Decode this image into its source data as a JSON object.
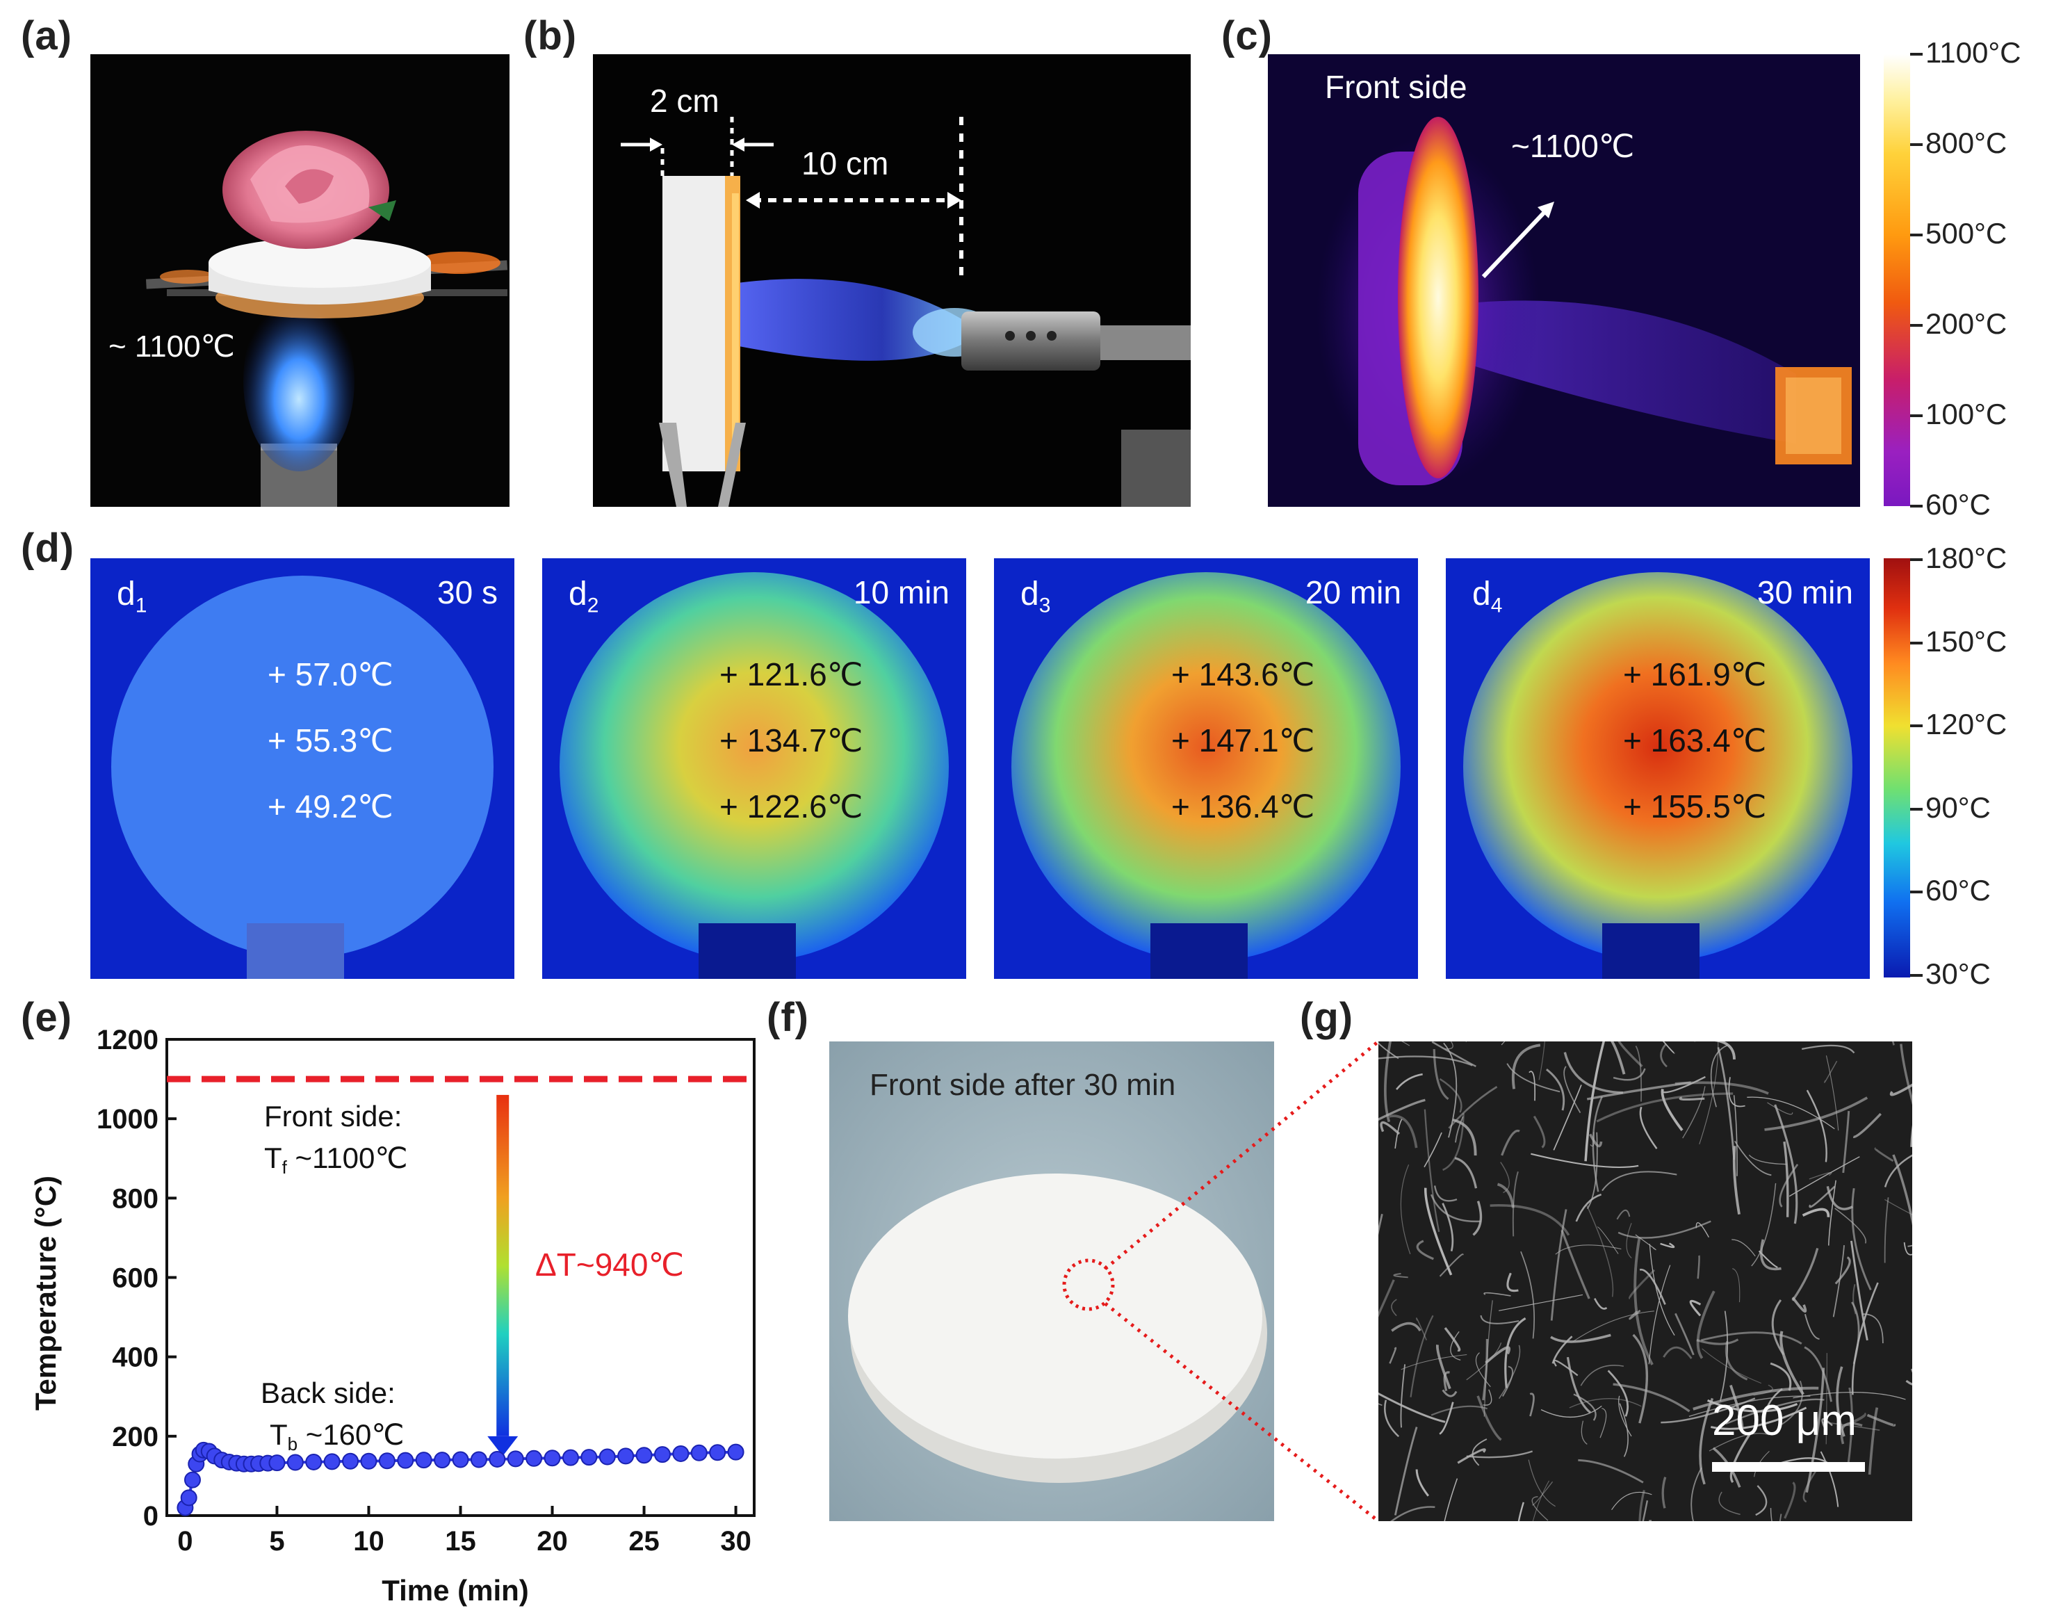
{
  "panel_labels": {
    "a": "(a)",
    "b": "(b)",
    "c": "(c)",
    "d": "(d)",
    "e": "(e)",
    "f": "(f)",
    "g": "(g)"
  },
  "panel_a": {
    "flame_temp": "~ 1100℃"
  },
  "panel_b": {
    "thickness": "2 cm",
    "distance": "10 cm"
  },
  "panel_c": {
    "title": "Front side",
    "temp": "~1100℃",
    "colorbar_ticks": [
      "1100°C",
      "800°C",
      "500°C",
      "200°C",
      "100°C",
      "60°C"
    ]
  },
  "panel_d": {
    "colorbar_ticks": [
      "180°C",
      "150°C",
      "120°C",
      "90°C",
      "60°C",
      "30°C"
    ],
    "frames": [
      {
        "label": "d",
        "sub": "1",
        "time": "30 s",
        "points": [
          "+ 57.0℃",
          "+ 55.3℃",
          "+ 49.2℃"
        ]
      },
      {
        "label": "d",
        "sub": "2",
        "time": "10 min",
        "points": [
          "+ 121.6℃",
          "+ 134.7℃",
          "+ 122.6℃"
        ]
      },
      {
        "label": "d",
        "sub": "3",
        "time": "20 min",
        "points": [
          "+ 143.6℃",
          "+ 147.1℃",
          "+ 136.4℃"
        ]
      },
      {
        "label": "d",
        "sub": "4",
        "time": "30 min",
        "points": [
          "+ 161.9℃",
          "+ 163.4℃",
          "+ 155.5℃"
        ]
      }
    ]
  },
  "chart_data": {
    "type": "line",
    "xlabel": "Time (min)",
    "ylabel": "Temperature (°C)",
    "xlim": [
      -1,
      31
    ],
    "ylim": [
      0,
      1200
    ],
    "xticks": [
      0,
      5,
      10,
      15,
      20,
      25,
      30
    ],
    "yticks": [
      0,
      200,
      400,
      600,
      800,
      1000,
      1200
    ],
    "front_line": {
      "y": 1100,
      "color": "#e8202a"
    },
    "back_series": {
      "color": "#2a33e0",
      "x": [
        0,
        0.2,
        0.4,
        0.6,
        0.8,
        1.0,
        1.3,
        1.6,
        2.0,
        2.4,
        2.8,
        3.2,
        3.6,
        4.0,
        4.5,
        5.0,
        6,
        7,
        8,
        9,
        10,
        11,
        12,
        13,
        14,
        15,
        16,
        17,
        18,
        19,
        20,
        21,
        22,
        23,
        24,
        25,
        26,
        27,
        28,
        29,
        30
      ],
      "y": [
        20,
        45,
        90,
        130,
        155,
        165,
        162,
        150,
        140,
        135,
        132,
        130,
        130,
        131,
        132,
        133,
        134,
        135,
        136,
        137,
        137,
        138,
        139,
        140,
        140,
        141,
        141,
        142,
        143,
        144,
        145,
        146,
        147,
        148,
        150,
        152,
        154,
        156,
        158,
        159,
        160
      ]
    },
    "annotations": {
      "front_1": "Front side:",
      "front_2_main": "T",
      "front_2_sub": "f",
      "front_2_rest": " ~1100℃",
      "back_1": "Back side:",
      "back_2_main": "T",
      "back_2_sub": "b",
      "back_2_rest": " ~160℃",
      "delta": "ΔT~940℃"
    }
  },
  "panel_f": {
    "title": "Front side after 30 min"
  },
  "panel_g": {
    "scalebar": "200 μm"
  }
}
